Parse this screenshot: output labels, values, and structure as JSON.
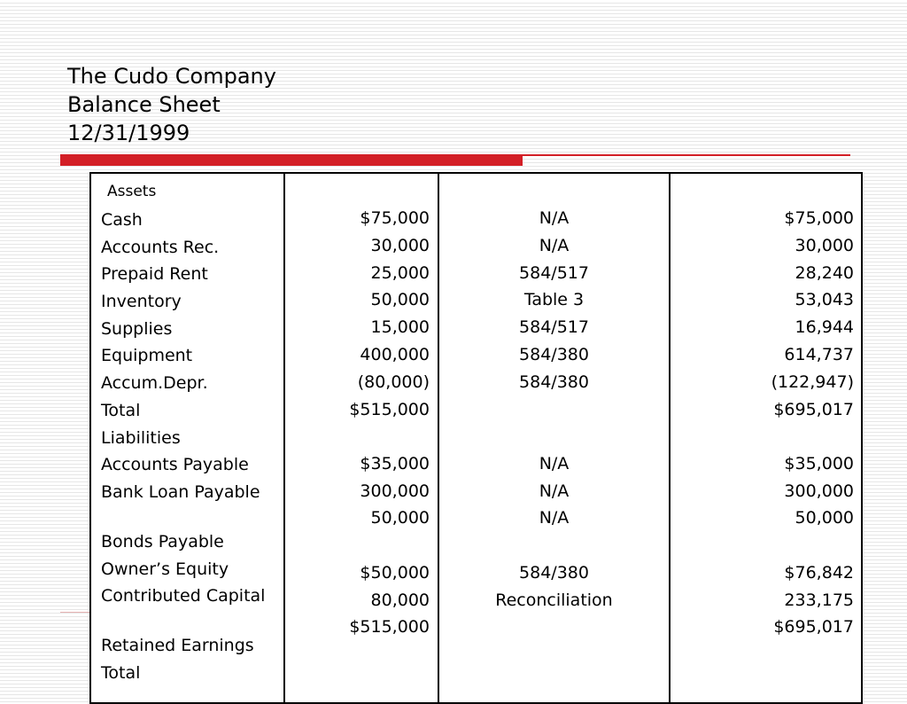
{
  "title": {
    "company": "The Cudo Company",
    "statement": "Balance Sheet",
    "date": "12/31/1999"
  },
  "labels": {
    "assets_header": "Assets",
    "cash": "Cash",
    "accounts_rec": "Accounts Rec.",
    "prepaid_rent": "Prepaid Rent",
    "inventory": "Inventory",
    "supplies": "Supplies",
    "equipment": "Equipment",
    "accum_depr": "Accum.Depr.",
    "total_assets": "Total",
    "liabilities": "Liabilities",
    "accounts_payable": "Accounts Payable",
    "bank_loan_payable": "Bank Loan Payable",
    "bonds_payable": "Bonds Payable",
    "owners_equity": "Owner’s Equity",
    "contributed_capital": "Contributed Capital",
    "retained_earnings": "Retained Earnings",
    "total_liab_equity": "Total"
  },
  "historical": {
    "cash": "$75,000",
    "accounts_rec": "30,000",
    "prepaid_rent": "25,000",
    "inventory": "50,000",
    "supplies": "15,000",
    "equipment": "400,000",
    "accum_depr": "(80,000)",
    "total_assets": "$515,000",
    "accounts_payable": "$35,000",
    "bank_loan": "300,000",
    "bonds_payable": "50,000",
    "contributed_capital": "$50,000",
    "retained_earnings": "80,000",
    "total": "$515,000"
  },
  "adjustment": {
    "cash": "N/A",
    "accounts_rec": "N/A",
    "prepaid_rent": "584/517",
    "inventory": "Table 3",
    "supplies": "584/517",
    "equipment": "584/380",
    "accum_depr": "584/380",
    "accounts_payable": "N/A",
    "bank_loan": "N/A",
    "bonds_payable": "N/A",
    "contributed_capital": "584/380",
    "retained_earnings": "Reconciliation"
  },
  "adjusted": {
    "cash": "$75,000",
    "accounts_rec": "30,000",
    "prepaid_rent": "28,240",
    "inventory": "53,043",
    "supplies": "16,944",
    "equipment": "614,737",
    "accum_depr": "(122,947)",
    "total_assets": "$695,017",
    "accounts_payable": "$35,000",
    "bank_loan": "300,000",
    "bonds_payable": "50,000",
    "contributed_capital": "$76,842",
    "retained_earnings": "233,175",
    "total": "$695,017"
  },
  "colors": {
    "accent_red": "#d31f26",
    "stripe": "#e6e6e6"
  }
}
